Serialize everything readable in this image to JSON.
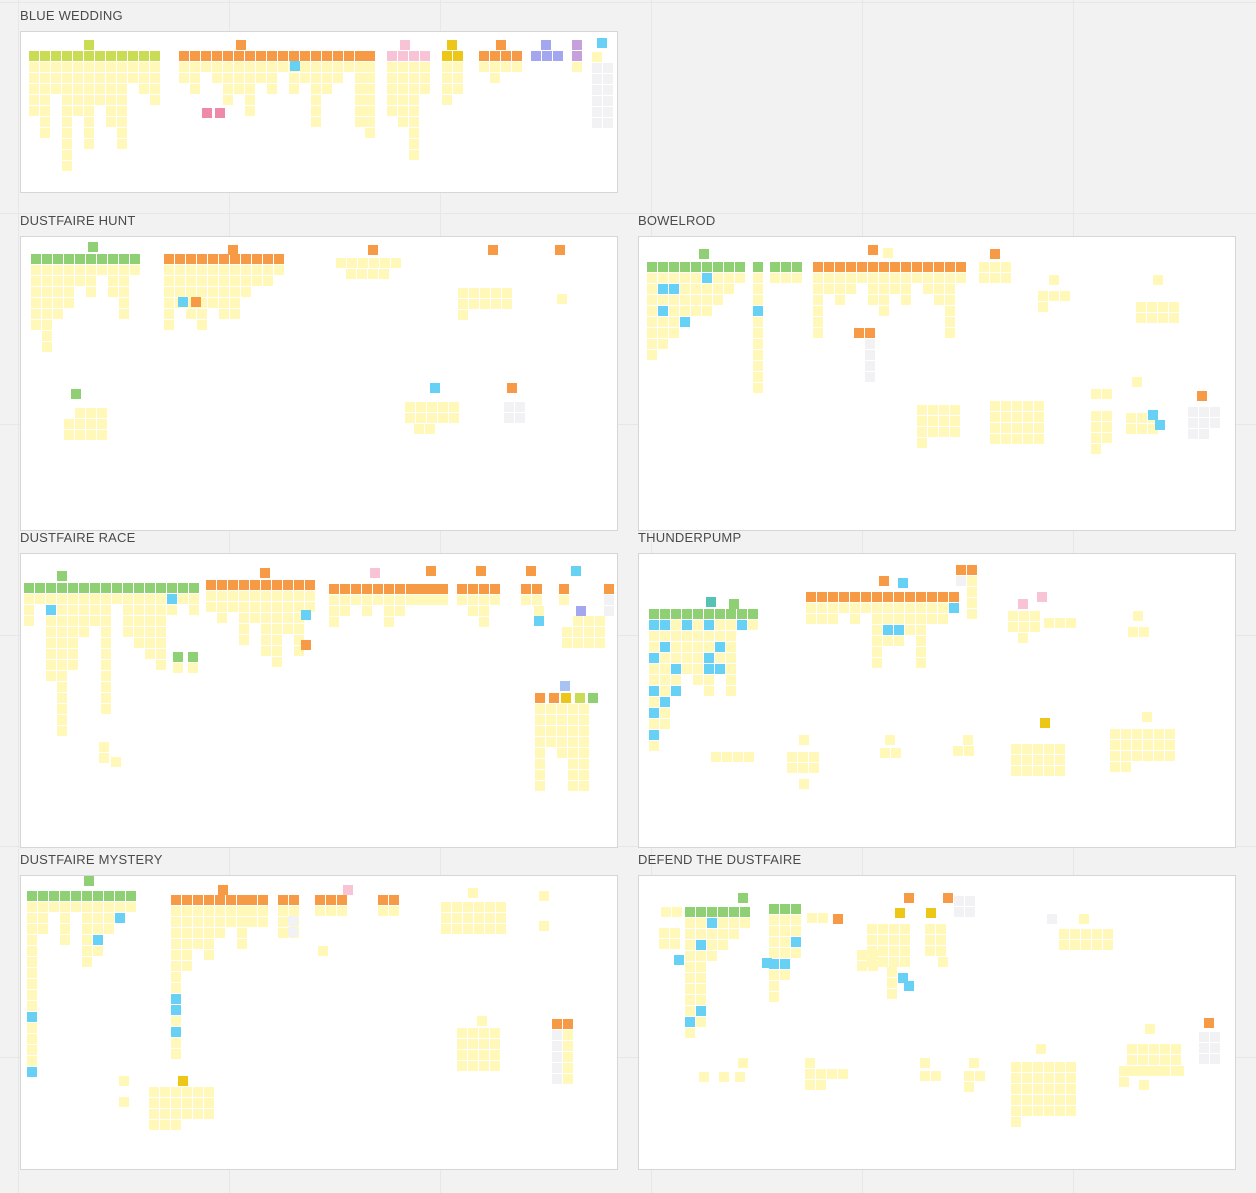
{
  "board": {
    "frames": [
      {
        "id": "blue-wedding",
        "title": "BLUE WEDDING"
      },
      {
        "id": "dustfaire-hunt",
        "title": "DUSTFAIRE HUNT"
      },
      {
        "id": "bowelrod",
        "title": "BOWELROD"
      },
      {
        "id": "dustfaire-race",
        "title": "DUSTFAIRE RACE"
      },
      {
        "id": "thunderpump",
        "title": "THUNDERPUMP"
      },
      {
        "id": "dustfaire-mystery",
        "title": "DUSTFAIRE MYSTERY"
      },
      {
        "id": "defend-the-dustfaire",
        "title": "DEFEND THE DUSTFAIRE"
      }
    ]
  },
  "colors": {
    "lime": "#c9dc54",
    "green": "#8fd074",
    "orange": "#f79a45",
    "pink": "#f7c3d5",
    "gold": "#ecc718",
    "violet": "#a3a7ef",
    "purple": "#c6a0db",
    "blue": "#66d1f5",
    "white": "#f2f2f4",
    "rose": "#ee8aa7",
    "teal": "#56c2b3",
    "sky": "#a6c3f3",
    "yellow": "#fff8b9"
  }
}
